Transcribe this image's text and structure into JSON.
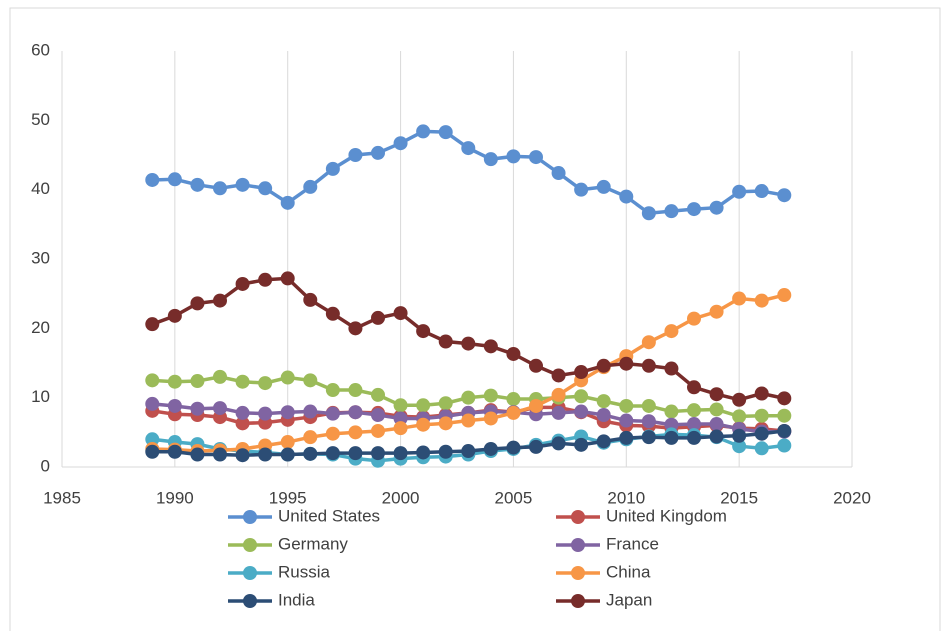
{
  "chart_data": {
    "type": "line",
    "x": [
      1989,
      1990,
      1991,
      1992,
      1993,
      1994,
      1995,
      1996,
      1997,
      1998,
      1999,
      2000,
      2001,
      2002,
      2003,
      2004,
      2005,
      2006,
      2007,
      2008,
      2009,
      2010,
      2011,
      2012,
      2013,
      2014,
      2015,
      2016,
      2017
    ],
    "series": [
      {
        "name": "United States",
        "color": "#5b8fd0",
        "values": [
          41.4,
          41.5,
          40.7,
          40.2,
          40.7,
          40.2,
          38.1,
          40.4,
          43.0,
          45.0,
          45.3,
          46.7,
          48.4,
          48.3,
          46.0,
          44.4,
          44.8,
          44.7,
          42.4,
          40.0,
          40.4,
          39.0,
          36.6,
          36.9,
          37.2,
          37.4,
          39.7,
          39.8,
          39.2
        ]
      },
      {
        "name": "United Kingdom",
        "color": "#c0504d",
        "values": [
          8.1,
          7.6,
          7.5,
          7.2,
          6.3,
          6.4,
          6.8,
          7.2,
          7.8,
          7.9,
          7.8,
          7.3,
          7.2,
          7.5,
          7.8,
          8.2,
          7.9,
          8.6,
          8.6,
          7.9,
          6.6,
          6.0,
          5.9,
          5.6,
          5.8,
          6.0,
          5.6,
          5.5,
          5.2
        ]
      },
      {
        "name": "Germany",
        "color": "#9bbb59",
        "values": [
          12.5,
          12.3,
          12.4,
          13.0,
          12.3,
          12.1,
          12.9,
          12.5,
          11.1,
          11.1,
          10.4,
          8.9,
          8.9,
          9.2,
          10.0,
          10.3,
          9.8,
          9.8,
          10.0,
          10.2,
          9.5,
          8.8,
          8.8,
          8.0,
          8.2,
          8.3,
          7.3,
          7.4,
          7.4
        ]
      },
      {
        "name": "France",
        "color": "#8064a2",
        "values": [
          9.1,
          8.8,
          8.4,
          8.5,
          7.8,
          7.7,
          7.9,
          8.0,
          7.7,
          7.9,
          7.5,
          7.0,
          7.0,
          7.3,
          7.8,
          8.0,
          7.9,
          7.6,
          7.8,
          8.0,
          7.5,
          6.7,
          6.6,
          6.1,
          6.2,
          6.2,
          5.5,
          5.1,
          5.1
        ]
      },
      {
        "name": "Russia",
        "color": "#4bacc6",
        "values": [
          4.0,
          3.6,
          3.3,
          2.6,
          2.3,
          2.1,
          1.8,
          1.9,
          1.8,
          1.2,
          0.9,
          1.2,
          1.4,
          1.5,
          1.8,
          2.3,
          2.6,
          3.2,
          3.8,
          4.4,
          3.5,
          4.0,
          4.4,
          4.7,
          4.6,
          4.3,
          3.0,
          2.7,
          3.1
        ]
      },
      {
        "name": "China",
        "color": "#f79646",
        "values": [
          2.6,
          2.5,
          2.3,
          2.4,
          2.6,
          3.1,
          3.6,
          4.3,
          4.8,
          5.0,
          5.2,
          5.6,
          6.1,
          6.3,
          6.7,
          7.0,
          7.8,
          8.8,
          10.4,
          12.5,
          14.4,
          16.0,
          18.0,
          19.6,
          21.4,
          22.4,
          24.3,
          24.0,
          24.8
        ]
      },
      {
        "name": "India",
        "color": "#2c4d75",
        "values": [
          2.2,
          2.2,
          1.8,
          1.8,
          1.7,
          1.8,
          1.8,
          1.9,
          2.0,
          2.0,
          2.0,
          2.0,
          2.1,
          2.2,
          2.3,
          2.6,
          2.8,
          2.9,
          3.4,
          3.2,
          3.7,
          4.2,
          4.3,
          4.2,
          4.2,
          4.4,
          4.5,
          4.8,
          5.2
        ]
      },
      {
        "name": "Japan",
        "color": "#772c2a",
        "values": [
          20.6,
          21.8,
          23.6,
          24.0,
          26.4,
          27.0,
          27.2,
          24.1,
          22.1,
          20.0,
          21.5,
          22.2,
          19.6,
          18.1,
          17.8,
          17.4,
          16.3,
          14.6,
          13.2,
          13.7,
          14.6,
          14.9,
          14.6,
          14.2,
          11.5,
          10.5,
          9.7,
          10.6,
          9.9
        ]
      }
    ],
    "xlim": [
      1985,
      2020
    ],
    "xticks": [
      1985,
      1990,
      1995,
      2000,
      2005,
      2010,
      2015,
      2020
    ],
    "ylim": [
      0,
      60
    ],
    "yticks": [
      0,
      10,
      20,
      30,
      40,
      50,
      60
    ],
    "grid": "x",
    "legend": "bottom"
  }
}
